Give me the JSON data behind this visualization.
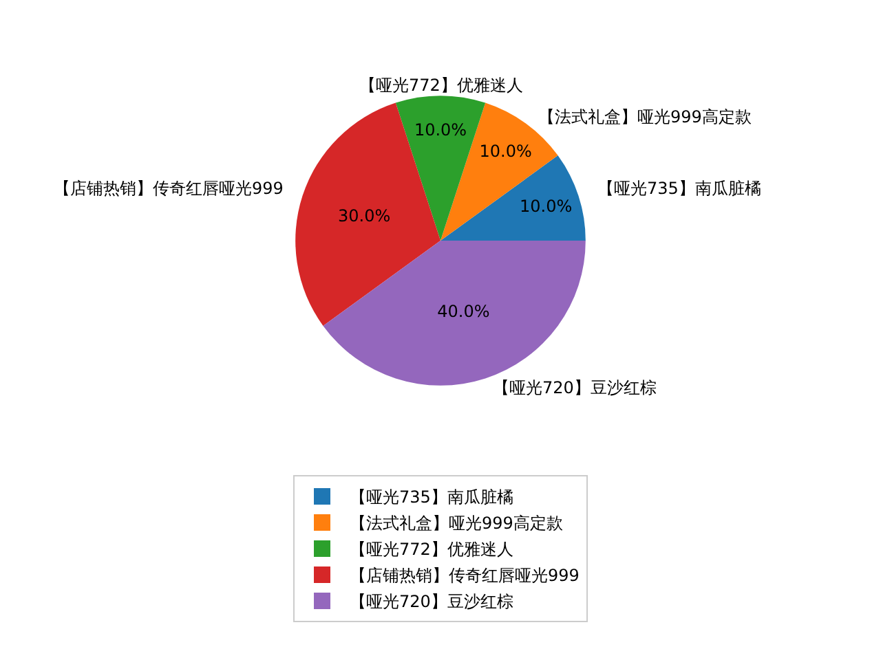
{
  "chart_data": {
    "type": "pie",
    "categories": [
      "【哑光735】南瓜脏橘",
      "【法式礼盒】哑光999高定款",
      "【哑光772】优雅迷人",
      "【店铺热销】传奇红唇哑光999",
      "【哑光720】豆沙红棕"
    ],
    "values": [
      10,
      10,
      10,
      30,
      40
    ],
    "value_labels": [
      "10.0%",
      "10.0%",
      "10.0%",
      "30.0%",
      "40.0%"
    ],
    "colors": [
      "#1f77b4",
      "#ff7f0e",
      "#2ca02c",
      "#d62728",
      "#9467bd"
    ],
    "legend": "bottom"
  }
}
